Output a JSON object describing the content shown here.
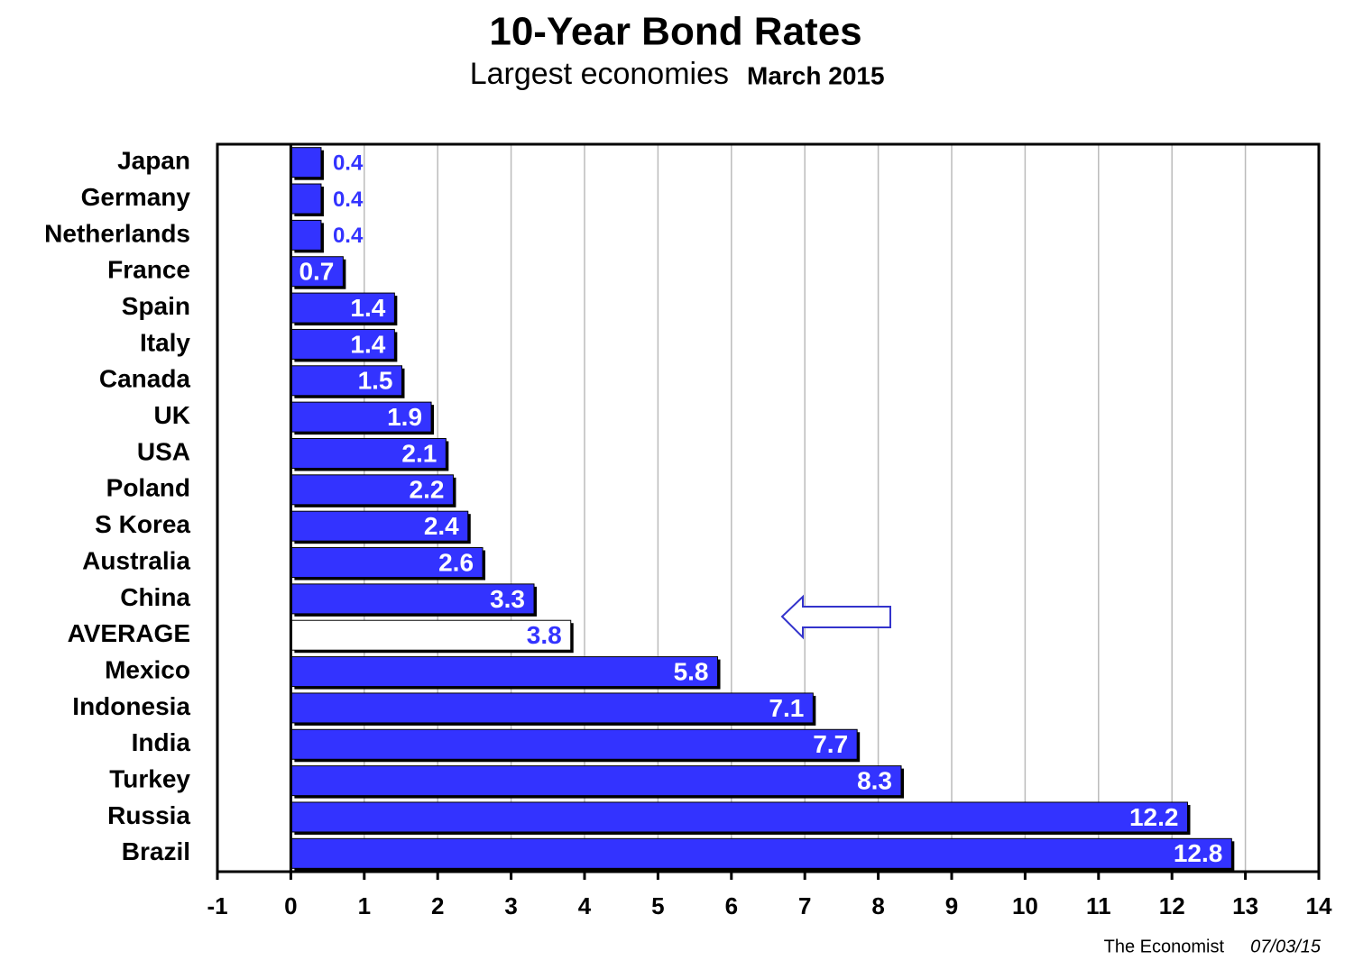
{
  "chart_data": {
    "type": "barh",
    "title": "10-Year Bond Rates",
    "subtitle": "Largest economies",
    "subtitle_date": "March 2015",
    "source": "The Economist",
    "source_date": "07/03/15",
    "categories": [
      "Japan",
      "Germany",
      "Netherlands",
      "France",
      "Spain",
      "Italy",
      "Canada",
      "UK",
      "USA",
      "Poland",
      "S Korea",
      "Australia",
      "China",
      "AVERAGE",
      "Mexico",
      "Indonesia",
      "India",
      "Turkey",
      "Russia",
      "Brazil"
    ],
    "values": [
      0.4,
      0.4,
      0.4,
      0.7,
      1.4,
      1.4,
      1.5,
      1.9,
      2.1,
      2.2,
      2.4,
      2.6,
      3.3,
      3.8,
      5.8,
      7.1,
      7.7,
      8.3,
      12.2,
      12.8
    ],
    "colors": [
      "#3333ff",
      "#3333ff",
      "#3333ff",
      "#3333ff",
      "#3333ff",
      "#3333ff",
      "#3333ff",
      "#3333ff",
      "#3333ff",
      "#3333ff",
      "#3333ff",
      "#3333ff",
      "#3333ff",
      "#ffffff",
      "#3333ff",
      "#3333ff",
      "#3333ff",
      "#3333ff",
      "#3333ff",
      "#3333ff"
    ],
    "xlim": [
      -1,
      14
    ],
    "xticks": [
      -1,
      0,
      1,
      2,
      3,
      4,
      5,
      6,
      7,
      8,
      9,
      10,
      11,
      12,
      13,
      14
    ],
    "grid": true
  }
}
